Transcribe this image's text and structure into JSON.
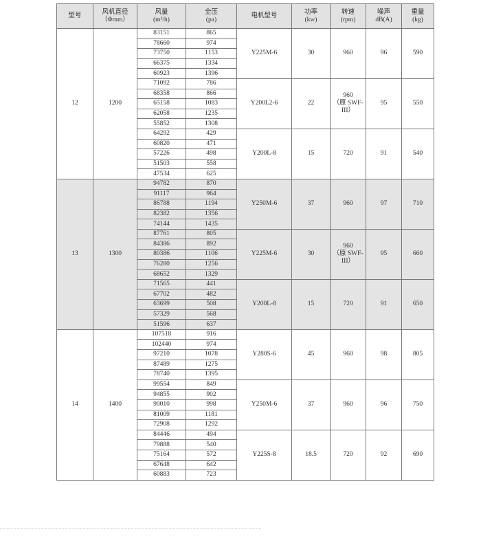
{
  "header": {
    "columns": [
      {
        "line1": "型号",
        "line2": ""
      },
      {
        "line1": "风机直径",
        "line2": "（Φmm）"
      },
      {
        "line1": "风量",
        "line2": "(m³/h)"
      },
      {
        "line1": "全压",
        "line2": "(pa)"
      },
      {
        "line1": "电机型号",
        "line2": ""
      },
      {
        "line1": "功率",
        "line2": "(kw)"
      },
      {
        "line1": "转速",
        "line2": "(rpm)"
      },
      {
        "line1": "噪声",
        "line2": "dB(A)"
      },
      {
        "line1": "重量",
        "line2": "(kg)"
      }
    ]
  },
  "groups": [
    {
      "model": "12",
      "diameter": "1200",
      "shaded": false,
      "motors": [
        {
          "motor": "Y225M-6",
          "power": "30",
          "speed": "960",
          "speed_note": "",
          "noise": "96",
          "weight": "590",
          "points": [
            [
              "83151",
              "865"
            ],
            [
              "78660",
              "974"
            ],
            [
              "73750",
              "1153"
            ],
            [
              "66375",
              "1334"
            ],
            [
              "60923",
              "1396"
            ]
          ]
        },
        {
          "motor": "Y200L2-6",
          "power": "22",
          "speed": "960",
          "speed_note": "（原 SWF-III）",
          "noise": "95",
          "weight": "550",
          "points": [
            [
              "71092",
              "786"
            ],
            [
              "68358",
              "866"
            ],
            [
              "65158",
              "1083"
            ],
            [
              "62058",
              "1235"
            ],
            [
              "55852",
              "1308"
            ]
          ]
        },
        {
          "motor": "Y200L-8",
          "power": "15",
          "speed": "720",
          "speed_note": "",
          "noise": "91",
          "weight": "540",
          "points": [
            [
              "64292",
              "429"
            ],
            [
              "60820",
              "471"
            ],
            [
              "57226",
              "498"
            ],
            [
              "51503",
              "558"
            ],
            [
              "47534",
              "625"
            ]
          ]
        }
      ]
    },
    {
      "model": "13",
      "diameter": "1300",
      "shaded": true,
      "motors": [
        {
          "motor": "Y250M-6",
          "power": "37",
          "speed": "960",
          "speed_note": "",
          "noise": "97",
          "weight": "710",
          "points": [
            [
              "94782",
              "870"
            ],
            [
              "91117",
              "964"
            ],
            [
              "86788",
              "1194"
            ],
            [
              "82382",
              "1356"
            ],
            [
              "74144",
              "1435"
            ]
          ]
        },
        {
          "motor": "Y225M-6",
          "power": "30",
          "speed": "960",
          "speed_note": "（原 SWF-III）",
          "noise": "95",
          "weight": "660",
          "points": [
            [
              "87761",
              "805"
            ],
            [
              "84386",
              "892"
            ],
            [
              "80386",
              "1106"
            ],
            [
              "76280",
              "1256"
            ],
            [
              "68652",
              "1329"
            ]
          ]
        },
        {
          "motor": "Y200L-8",
          "power": "15",
          "speed": "720",
          "speed_note": "",
          "noise": "91",
          "weight": "650",
          "points": [
            [
              "71565",
              "441"
            ],
            [
              "67702",
              "482"
            ],
            [
              "63699",
              "508"
            ],
            [
              "57329",
              "568"
            ],
            [
              "51596",
              "637"
            ]
          ]
        }
      ]
    },
    {
      "model": "14",
      "diameter": "1400",
      "shaded": false,
      "motors": [
        {
          "motor": "Y280S-6",
          "power": "45",
          "speed": "960",
          "speed_note": "",
          "noise": "98",
          "weight": "805",
          "points": [
            [
              "107518",
              "916"
            ],
            [
              "102440",
              "974"
            ],
            [
              "97210",
              "1078"
            ],
            [
              "87489",
              "1275"
            ],
            [
              "78740",
              "1395"
            ]
          ]
        },
        {
          "motor": "Y250M-6",
          "power": "37",
          "speed": "960",
          "speed_note": "",
          "noise": "96",
          "weight": "750",
          "points": [
            [
              "99554",
              "849"
            ],
            [
              "94855",
              "902"
            ],
            [
              "90010",
              "998"
            ],
            [
              "81009",
              "1181"
            ],
            [
              "72908",
              "1292"
            ]
          ]
        },
        {
          "motor": "Y225S-8",
          "power": "18.5",
          "speed": "720",
          "speed_note": "",
          "noise": "92",
          "weight": "690",
          "points": [
            [
              "84446",
              "494"
            ],
            [
              "79888",
              "540"
            ],
            [
              "75164",
              "572"
            ],
            [
              "67648",
              "642"
            ],
            [
              "60883",
              "723"
            ]
          ]
        }
      ]
    }
  ]
}
